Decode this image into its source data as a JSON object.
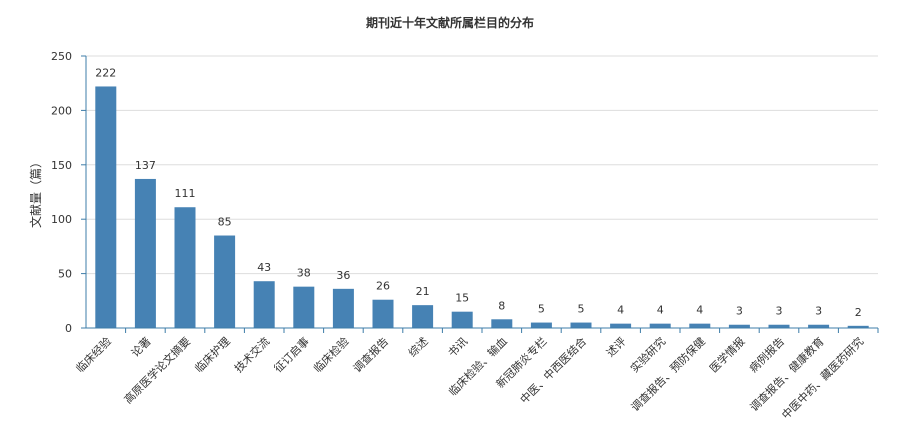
{
  "chart_data": {
    "type": "bar",
    "title": "期刊近十年文献所属栏目的分布",
    "xlabel": "",
    "ylabel": "文献量（篇）",
    "ylim": [
      0,
      250
    ],
    "yticks": [
      0,
      50,
      100,
      150,
      200,
      250
    ],
    "grid": true,
    "categories": [
      "临床经验",
      "论著",
      "高原医学论文摘要",
      "临床护理",
      "技术交流",
      "征订启事",
      "临床检验",
      "调查报告",
      "综述",
      "书讯",
      "临床检验、输血",
      "新冠肺炎专栏",
      "中医、中西医结合",
      "述评",
      "实验研究",
      "调查报告、预防保健",
      "医学情报",
      "病例报告",
      "调查报告、健康教育",
      "中医中药、藏医药研究"
    ],
    "values": [
      222,
      137,
      111,
      85,
      43,
      38,
      36,
      26,
      21,
      15,
      8,
      5,
      5,
      4,
      4,
      4,
      3,
      3,
      3,
      2
    ],
    "bar_color": "#4682b4",
    "axis_color": "#3d7ca8",
    "grid_color": "#dddddd"
  }
}
